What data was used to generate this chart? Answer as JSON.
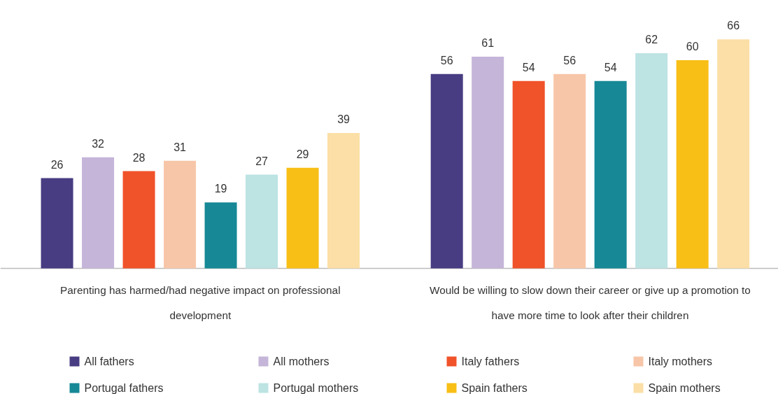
{
  "chart_data": {
    "type": "bar",
    "categories": [
      "Parenting has harmed/had negative impact on professional development",
      "Would be willing to slow down their career or give up a promotion to have more time to look after their children"
    ],
    "series": [
      {
        "name": "All fathers",
        "color": "#483c82",
        "values": [
          26,
          56
        ]
      },
      {
        "name": "All mothers",
        "color": "#c5b5d9",
        "values": [
          32,
          61
        ]
      },
      {
        "name": "Italy fathers",
        "color": "#f0522a",
        "values": [
          28,
          54
        ]
      },
      {
        "name": "Italy mothers",
        "color": "#f7c6a8",
        "values": [
          31,
          56
        ]
      },
      {
        "name": "Portugal fathers",
        "color": "#168896",
        "values": [
          19,
          54
        ]
      },
      {
        "name": "Portugal mothers",
        "color": "#bde3e3",
        "values": [
          27,
          62
        ]
      },
      {
        "name": "Spain fathers",
        "color": "#f8bf16",
        "values": [
          29,
          60
        ]
      },
      {
        "name": "Spain mothers",
        "color": "#fbdfa6",
        "values": [
          39,
          66
        ]
      }
    ],
    "data_labels": true,
    "legend": "bottom"
  }
}
